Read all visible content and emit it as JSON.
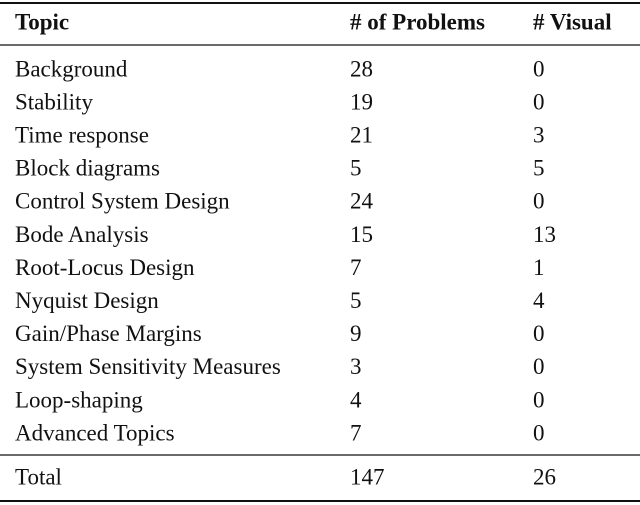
{
  "table": {
    "columns": [
      "Topic",
      "# of Problems",
      "# Visual"
    ],
    "rows": [
      [
        "Background",
        28,
        0
      ],
      [
        "Stability",
        19,
        0
      ],
      [
        "Time response",
        21,
        3
      ],
      [
        "Block diagrams",
        5,
        5
      ],
      [
        "Control System Design",
        24,
        0
      ],
      [
        "Bode Analysis",
        15,
        13
      ],
      [
        "Root-Locus Design",
        7,
        1
      ],
      [
        "Nyquist Design",
        5,
        4
      ],
      [
        "Gain/Phase Margins",
        9,
        0
      ],
      [
        "System Sensitivity Measures",
        3,
        0
      ],
      [
        "Loop-shaping",
        4,
        0
      ],
      [
        "Advanced Topics",
        7,
        0
      ]
    ],
    "total": [
      "Total",
      147,
      26
    ]
  }
}
